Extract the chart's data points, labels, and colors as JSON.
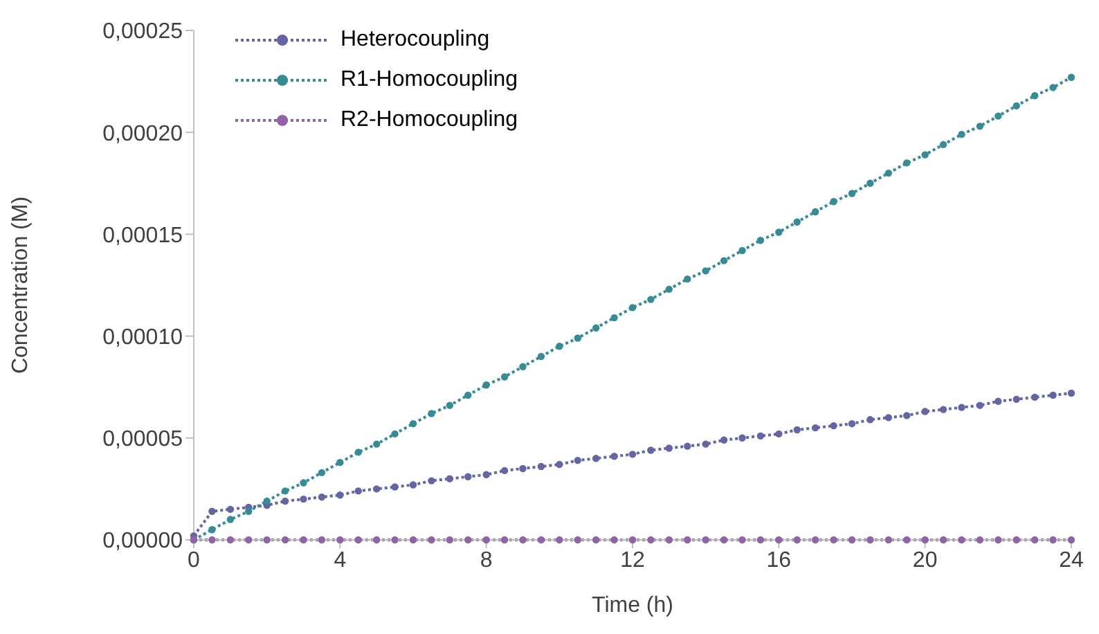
{
  "chart_data": {
    "type": "line",
    "xlabel": "Time (h)",
    "ylabel": "Concentration (M)",
    "x": [
      0,
      0.5,
      1,
      1.5,
      2,
      2.5,
      3,
      3.5,
      4,
      4.5,
      5,
      5.5,
      6,
      6.5,
      7,
      7.5,
      8,
      8.5,
      9,
      9.5,
      10,
      10.5,
      11,
      11.5,
      12,
      12.5,
      13,
      13.5,
      14,
      14.5,
      15,
      15.5,
      16,
      16.5,
      17,
      17.5,
      18,
      18.5,
      19,
      19.5,
      20,
      20.5,
      21,
      21.5,
      22,
      22.5,
      23,
      23.5,
      24
    ],
    "series": [
      {
        "name": "Heterocoupling",
        "color": "#6366a0",
        "values": [
          2e-06,
          1.4e-05,
          1.5e-05,
          1.6e-05,
          1.7e-05,
          1.9e-05,
          2e-05,
          2.1e-05,
          2.2e-05,
          2.4e-05,
          2.5e-05,
          2.6e-05,
          2.7e-05,
          2.9e-05,
          3e-05,
          3.1e-05,
          3.2e-05,
          3.4e-05,
          3.5e-05,
          3.6e-05,
          3.7e-05,
          3.9e-05,
          4e-05,
          4.1e-05,
          4.2e-05,
          4.4e-05,
          4.5e-05,
          4.6e-05,
          4.7e-05,
          4.9e-05,
          5e-05,
          5.1e-05,
          5.2e-05,
          5.4e-05,
          5.5e-05,
          5.6e-05,
          5.7e-05,
          5.9e-05,
          6e-05,
          6.1e-05,
          6.3e-05,
          6.4e-05,
          6.5e-05,
          6.6e-05,
          6.8e-05,
          6.9e-05,
          7e-05,
          7.1e-05,
          7.2e-05
        ]
      },
      {
        "name": "R1-Homocoupling",
        "color": "#368b94",
        "values": [
          0,
          5e-06,
          1e-05,
          1.4e-05,
          1.9e-05,
          2.4e-05,
          2.8e-05,
          3.3e-05,
          3.8e-05,
          4.3e-05,
          4.7e-05,
          5.2e-05,
          5.7e-05,
          6.2e-05,
          6.6e-05,
          7.1e-05,
          7.6e-05,
          8e-05,
          8.5e-05,
          9e-05,
          9.5e-05,
          9.9e-05,
          0.000104,
          0.000109,
          0.000114,
          0.000118,
          0.000123,
          0.000128,
          0.000132,
          0.000137,
          0.000142,
          0.000147,
          0.000151,
          0.000156,
          0.000161,
          0.000166,
          0.00017,
          0.000175,
          0.00018,
          0.000185,
          0.000189,
          0.000194,
          0.000199,
          0.000203,
          0.000208,
          0.000213,
          0.000218,
          0.000222,
          0.000227
        ]
      },
      {
        "name": "R2-Homocoupling",
        "color": "#9163a6",
        "values": [
          0,
          0,
          0,
          0,
          0,
          0,
          0,
          0,
          0,
          0,
          0,
          0,
          0,
          0,
          0,
          0,
          0,
          0,
          0,
          0,
          0,
          0,
          0,
          0,
          0,
          0,
          0,
          0,
          0,
          0,
          0,
          0,
          0,
          0,
          0,
          0,
          0,
          0,
          0,
          0,
          0,
          0,
          0,
          0,
          0,
          0,
          0,
          0,
          0
        ]
      }
    ],
    "xlim": [
      0,
      24
    ],
    "xticks": [
      0,
      4,
      8,
      12,
      16,
      20,
      24
    ],
    "ylim": [
      0,
      0.00025
    ],
    "yticks": [
      {
        "value": 0,
        "label": "0,00000"
      },
      {
        "value": 5e-05,
        "label": "0,00005"
      },
      {
        "value": 0.0001,
        "label": "0,00010"
      },
      {
        "value": 0.00015,
        "label": "0,00015"
      },
      {
        "value": 0.0002,
        "label": "0,00020"
      },
      {
        "value": 0.00025,
        "label": "0,00025"
      }
    ],
    "grid": false,
    "legend": "top left",
    "marker": "circle",
    "line_style": "dotted"
  }
}
